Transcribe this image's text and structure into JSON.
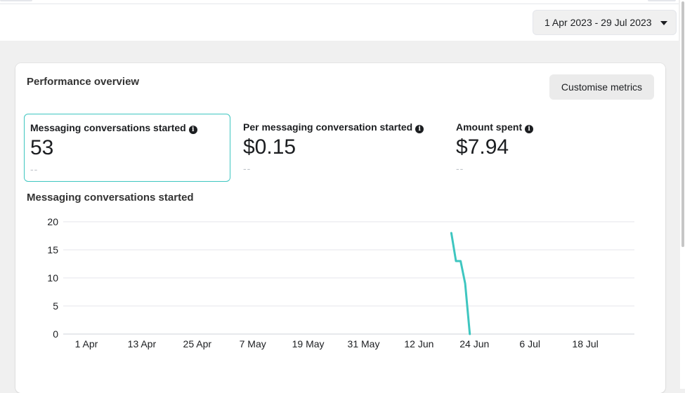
{
  "date_range": {
    "label": "1 Apr 2023 - 29 Jul 2023"
  },
  "card": {
    "title": "Performance overview",
    "customise_label": "Customise metrics"
  },
  "metrics": [
    {
      "label": "Messaging conversations started",
      "value": "53",
      "compare": "--",
      "selected": true
    },
    {
      "label": "Per messaging conversation started",
      "value": "$0.15",
      "compare": "--",
      "selected": false
    },
    {
      "label": "Amount spent",
      "value": "$7.94",
      "compare": "--",
      "selected": false
    }
  ],
  "chart_data": {
    "type": "line",
    "title": "Messaging conversations started",
    "x_tick_labels": [
      "1 Apr",
      "13 Apr",
      "25 Apr",
      "7 May",
      "19 May",
      "31 May",
      "12 Jun",
      "24 Jun",
      "6 Jul",
      "18 Jul"
    ],
    "x_start": "2023-04-01",
    "x_end": "2023-07-29",
    "ylim": [
      0,
      20
    ],
    "y_ticks": [
      0,
      5,
      10,
      15,
      20
    ],
    "grid": true,
    "color": "#3ec6c0",
    "series": [
      {
        "x": [
          "2023-06-19",
          "2023-06-20",
          "2023-06-21",
          "2023-06-22",
          "2023-06-23"
        ],
        "values": [
          18,
          13,
          13,
          9,
          0
        ]
      }
    ]
  }
}
